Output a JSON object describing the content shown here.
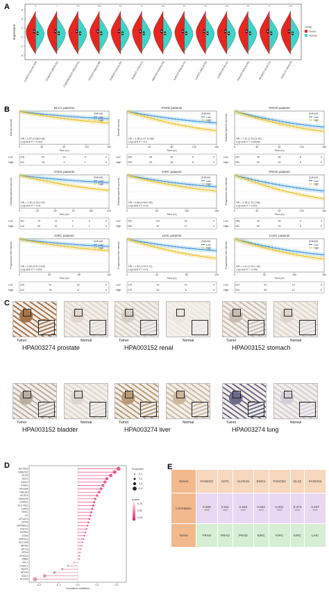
{
  "panels": {
    "a": "A",
    "b": "B",
    "c": "C",
    "d": "D",
    "e": "E"
  },
  "violin": {
    "ylabel": "Expression",
    "yticks": [
      "6",
      "4",
      "2",
      "0",
      "-2",
      "-4"
    ],
    "legend_title": "Group",
    "legend_items": [
      {
        "name": "Tumor",
        "color": "#e8261f"
      },
      {
        "name": "Normal",
        "color": "#3fd4c8"
      }
    ],
    "groups": [
      {
        "label": "LUAD(T=513,N=109)",
        "sig": "**"
      },
      {
        "label": "COAD(T=288,N=41)",
        "sig": "*"
      },
      {
        "label": "COADREAD(T=380,N=51)",
        "sig": "***"
      },
      {
        "label": "STES(T=599,N=48)",
        "sig": "****"
      },
      {
        "label": "STAD(T=414,N=35)",
        "sig": "***"
      },
      {
        "label": "PAAD(T=178,N=4)",
        "sig": "**"
      },
      {
        "label": "HNSC(T=518,N=44)",
        "sig": "****"
      },
      {
        "label": "KIRC(T=535,N=72)",
        "sig": "***"
      },
      {
        "label": "LIHC(T=369,N=50)",
        "sig": "***"
      },
      {
        "label": "UVM(T=80,N=11)",
        "sig": "****"
      },
      {
        "label": "THCA(T=505,N=59)",
        "sig": "***"
      },
      {
        "label": "READ(T=92,N=10)",
        "sig": "**"
      },
      {
        "label": "CHOL(T=36,N=9)",
        "sig": "****"
      }
    ]
  },
  "km": {
    "risk_low": "Low",
    "risk_high": "High",
    "time_label": "Time (m)",
    "plots": [
      {
        "title": "BLCA patients",
        "ylabel": "Overall survival",
        "legend": [
          "ZNF449",
          "Low",
          "High"
        ],
        "hr": "HR = 0.87 (0.58,0.96)",
        "p": "Log-rank P = 0.018",
        "xticks": [
          "0",
          "40",
          "80",
          "120",
          "160"
        ],
        "low": [
          "276",
          "51",
          "14",
          "6",
          "0"
        ],
        "high": [
          "131",
          "28",
          "9",
          "1",
          "0"
        ]
      },
      {
        "title": "PARD patients",
        "ylabel": "Overall survival",
        "legend": [
          "ZNF449",
          "Low",
          "High"
        ],
        "hr": "HR = 4.35 (1.47,12.86)",
        "p": "Log-rank P = 0.0",
        "xticks": [
          "0",
          "40",
          "80",
          "120",
          "160"
        ],
        "low": [
          "246",
          "98",
          "40",
          "9",
          "0"
        ],
        "high": [
          "249",
          "93",
          "46",
          "8",
          "0"
        ]
      },
      {
        "title": "PRAD patients",
        "ylabel": "Disease-specific survival",
        "legend": [
          "ZNF449",
          "Low",
          "High"
        ],
        "hr": "HR = 7.42 (2.25,24.45)",
        "p": "Log-rank P = 0.00090",
        "xticks": [
          "0",
          "40",
          "80",
          "120",
          "160"
        ],
        "low": [
          "240",
          "96",
          "38",
          "8",
          "0"
        ],
        "high": [
          "250",
          "92",
          "45",
          "8",
          "0"
        ]
      },
      {
        "title": "STES patients",
        "ylabel": "Disease-specific survival",
        "legend": [
          "ZNF449",
          "Low",
          "High"
        ],
        "hr": "HR = 1.52 (1.16,2.32)",
        "p": "Log-rank P = 0.01",
        "xticks": [
          "0",
          "25",
          "50",
          "75",
          "100",
          "125"
        ],
        "low": [
          "261",
          "79",
          "13",
          "4",
          "2",
          "0"
        ],
        "high": [
          "142",
          "42",
          "10",
          "2",
          "1",
          "0"
        ]
      },
      {
        "title": "KIRC patients",
        "ylabel": "Disease-specific survival",
        "legend": [
          "ZNF449",
          "Low",
          "High"
        ],
        "hr": "HR = 0.66 (0.46,0.95)",
        "p": "Log-rank P = 0.03",
        "xticks": [
          "0",
          "50",
          "100",
          "150"
        ],
        "low": [
          "252",
          "110",
          "23",
          "0"
        ],
        "high": [
          "260",
          "92",
          "17",
          "0"
        ]
      },
      {
        "title": "PRAD patients",
        "ylabel": "Progression-free interval",
        "legend": [
          "ZNF449",
          "Low",
          "High"
        ],
        "hr": "HR = 1.08 (1.31,2.96)",
        "p": "Log-rank P = 0.001",
        "xticks": [
          "0",
          "40",
          "80",
          "120",
          "160"
        ],
        "low": [
          "248",
          "94",
          "35",
          "4",
          "0"
        ],
        "high": [
          "241",
          "82",
          "29",
          "5",
          "0"
        ]
      },
      {
        "title": "KIRC patients",
        "ylabel": "Progression-free interval",
        "legend": [
          "ZNF449",
          "Low",
          "High"
        ],
        "hr": "HR = 0.62 (0.47,0.83)",
        "p": "Log-rank P = 0.002",
        "xticks": [
          "0",
          "40",
          "80",
          "120"
        ],
        "low": [
          "234",
          "91",
          "13",
          "0"
        ],
        "high": [
          "242",
          "78",
          "11",
          "0"
        ]
      },
      {
        "title": "LIHC patients",
        "ylabel": "Progression-free interval",
        "legend": [
          "ZNF449",
          "Low",
          "High"
        ],
        "hr": "HR = 1.52 (1.09,2.11)",
        "p": "Log-rank P = 0.01",
        "xticks": [
          "0",
          "40",
          "80",
          "120"
        ],
        "low": [
          "179",
          "39",
          "14",
          "0"
        ],
        "high": [
          "175",
          "33",
          "8",
          "0"
        ]
      },
      {
        "title": "LUSC patients",
        "ylabel": "Progression-free interval",
        "legend": [
          "ZNF449",
          "Low",
          "High"
        ],
        "hr": "HR = 1.41 (1.00,1.98)",
        "p": "Log-rank P = 0.048",
        "xticks": [
          "0",
          "50",
          "100",
          "150"
        ],
        "low": [
          "224",
          "61",
          "13",
          "0"
        ],
        "high": [
          "239",
          "59",
          "12",
          "0"
        ]
      }
    ]
  },
  "ihc": {
    "tumor_label": "Tumor",
    "normal_label": "Normal",
    "captions": [
      "HPA003274 prostate",
      "HPA003152 renal",
      "HPA003152 stomach",
      "HPA003152 bladder",
      "HPA003274 liver",
      "HPA003274 lung"
    ]
  },
  "lollipop": {
    "xlabel": "Correlation coefficient",
    "xticks": [
      "-0.2",
      "-0.1",
      "0.0",
      "0.1",
      "0.2"
    ],
    "legend_title_size": "Proportion",
    "legend_title_color": "pValue",
    "size_ticks": [
      "0.1",
      "0.2",
      "0.3",
      "0.4"
    ],
    "color_ticks": [
      "0.75",
      "0.50",
      "0.25"
    ],
    "genes": [
      "ALOX15",
      "FANCD2",
      "GLS2",
      "SAT1",
      "EMC2",
      "CISD1",
      "NCOA4",
      "PHKG2",
      "ACSL4",
      "HMGCR",
      "CARS1",
      "SLC7A11",
      "DPP4",
      "TFRC",
      "CS",
      "LPCAT3",
      "GPX4",
      "ATP5MC3",
      "FDFT1",
      "HSPB1",
      "CD44",
      "NFE2L2",
      "SLC1A5",
      "AIFM2",
      "MT1G",
      "RPL8",
      "ACACA",
      "ZEB1",
      "ATL1",
      "CHAC1",
      "NQO1",
      "MTOR",
      "SQLE",
      "ALOX5"
    ],
    "values": [
      0.21,
      0.19,
      0.17,
      0.15,
      0.14,
      0.13,
      0.12,
      0.11,
      0.1,
      0.09,
      0.085,
      0.08,
      0.075,
      0.07,
      0.065,
      0.06,
      0.055,
      0.05,
      0.045,
      0.04,
      0.035,
      0.03,
      0.025,
      0.02,
      0.015,
      0.012,
      0.01,
      0.008,
      -0.02,
      -0.05,
      -0.08,
      -0.12,
      -0.17,
      -0.22
    ]
  },
  "corr_table": {
    "row_labels": [
      "Genes",
      "Correlation",
      "Tumor"
    ],
    "genes": [
      "FANCD2",
      "SAT1",
      "ALOX15",
      "EMC2",
      "FANCD2",
      "GLS2",
      "FANCD2"
    ],
    "correlations": [
      "0.308",
      "0.311",
      "0.348",
      "0.332",
      "0.431",
      "0.473",
      "0.437"
    ],
    "stars": [
      "****",
      "****",
      "****",
      "****",
      "****",
      "****",
      "****"
    ],
    "tumors": [
      "PRAD",
      "PRAD",
      "PRAD",
      "KIRC",
      "KIRC",
      "KIRC",
      "LIHC"
    ]
  }
}
